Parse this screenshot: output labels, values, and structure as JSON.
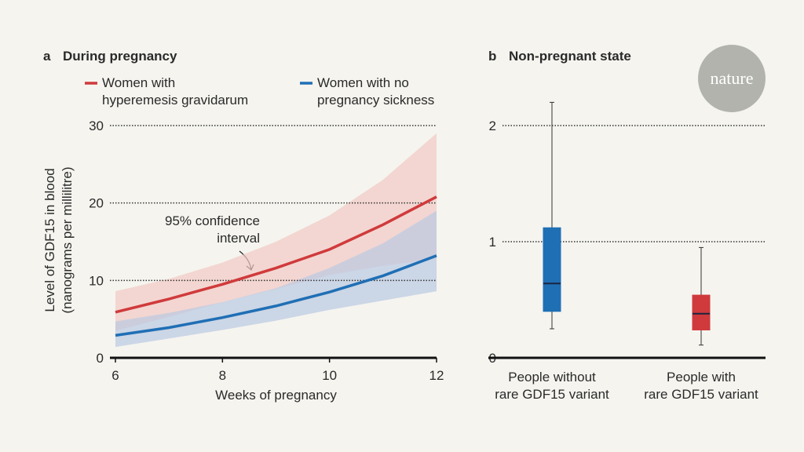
{
  "logo": "nature",
  "chart_data": [
    {
      "type": "line",
      "panel_label": "a",
      "title": "During pregnancy",
      "xlabel": "Weeks of pregnancy",
      "ylabel": "Level of GDF15 in blood\n(nanograms per millilitre)",
      "x": [
        6,
        7,
        8,
        9,
        10,
        11,
        12
      ],
      "xlim": [
        6,
        12
      ],
      "xticks": [
        6,
        8,
        10,
        12
      ],
      "ylim": [
        0,
        30
      ],
      "yticks": [
        0,
        10,
        20,
        30
      ],
      "grid": true,
      "annotation": "95% confidence\ninterval",
      "series": [
        {
          "name": "Women with\nhyperemesis gravidarum",
          "color": "#d03a3c",
          "band_color": "#f2c9c4",
          "values": [
            5.9,
            7.6,
            9.5,
            11.6,
            14.0,
            17.2,
            20.8
          ],
          "ci_lower": [
            3.5,
            5.3,
            7.2,
            8.9,
            10.7,
            11.9,
            12.8
          ],
          "ci_upper": [
            8.6,
            10.2,
            12.3,
            15.0,
            18.4,
            23.0,
            29.0
          ]
        },
        {
          "name": "Women with no\npregnancy sickness",
          "color": "#1f6fb5",
          "band_color": "#b9c9e3",
          "values": [
            2.9,
            3.9,
            5.2,
            6.7,
            8.5,
            10.6,
            13.2
          ],
          "ci_lower": [
            1.4,
            2.5,
            3.6,
            4.8,
            6.2,
            7.4,
            8.6
          ],
          "ci_upper": [
            4.7,
            5.8,
            7.2,
            9.0,
            11.6,
            14.8,
            19.0
          ]
        }
      ]
    },
    {
      "type": "box",
      "panel_label": "b",
      "title": "Non-pregnant state",
      "categories": [
        "People without\nrare GDF15 variant",
        "People with\nrare GDF15 variant"
      ],
      "colors": [
        "#1f6fb5",
        "#d03a3c"
      ],
      "ylim": [
        0,
        2.2
      ],
      "yticks": [
        0,
        1,
        2
      ],
      "grid": true,
      "boxes": [
        {
          "low": 0.25,
          "q1": 0.4,
          "median": 0.64,
          "q3": 1.12,
          "high": 2.2
        },
        {
          "low": 0.11,
          "q1": 0.24,
          "median": 0.38,
          "q3": 0.54,
          "high": 0.95
        }
      ]
    }
  ]
}
